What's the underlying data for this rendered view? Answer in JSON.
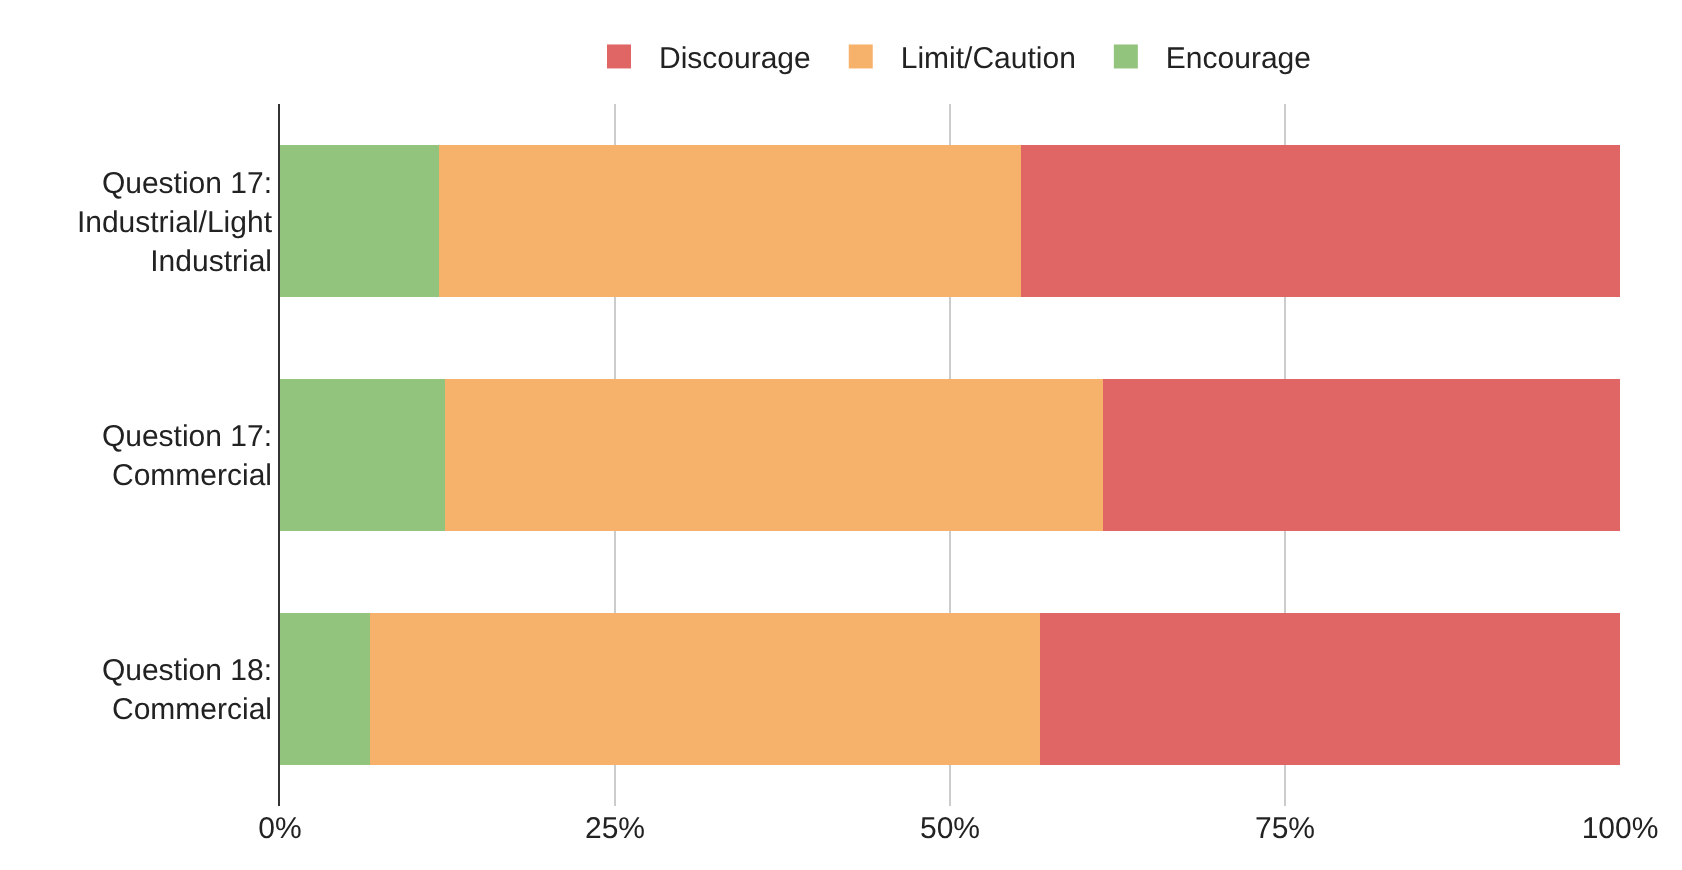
{
  "chart_data": {
    "type": "bar",
    "orientation": "horizontal",
    "stacked": true,
    "categories": [
      "Question 17:\nIndustrial/Light\nIndustrial",
      "Question 17:\nCommercial",
      "Question 18:\nCommercial"
    ],
    "series": [
      {
        "name": "Encourage",
        "color": "#93c47d",
        "values": [
          11.9,
          12.3,
          6.7
        ]
      },
      {
        "name": "Limit/Caution",
        "color": "#f6b26b",
        "values": [
          43.4,
          49.1,
          50.0
        ]
      },
      {
        "name": "Discourage",
        "color": "#e06666",
        "values": [
          44.7,
          38.6,
          43.3
        ]
      }
    ],
    "xlim": [
      0,
      100
    ],
    "xticks": [
      {
        "value": 0,
        "label": "0%"
      },
      {
        "value": 25,
        "label": "25%"
      },
      {
        "value": 50,
        "label": "50%"
      },
      {
        "value": 75,
        "label": "75%"
      },
      {
        "value": 100,
        "label": "100%"
      }
    ],
    "grid": "x",
    "legend": "top"
  }
}
